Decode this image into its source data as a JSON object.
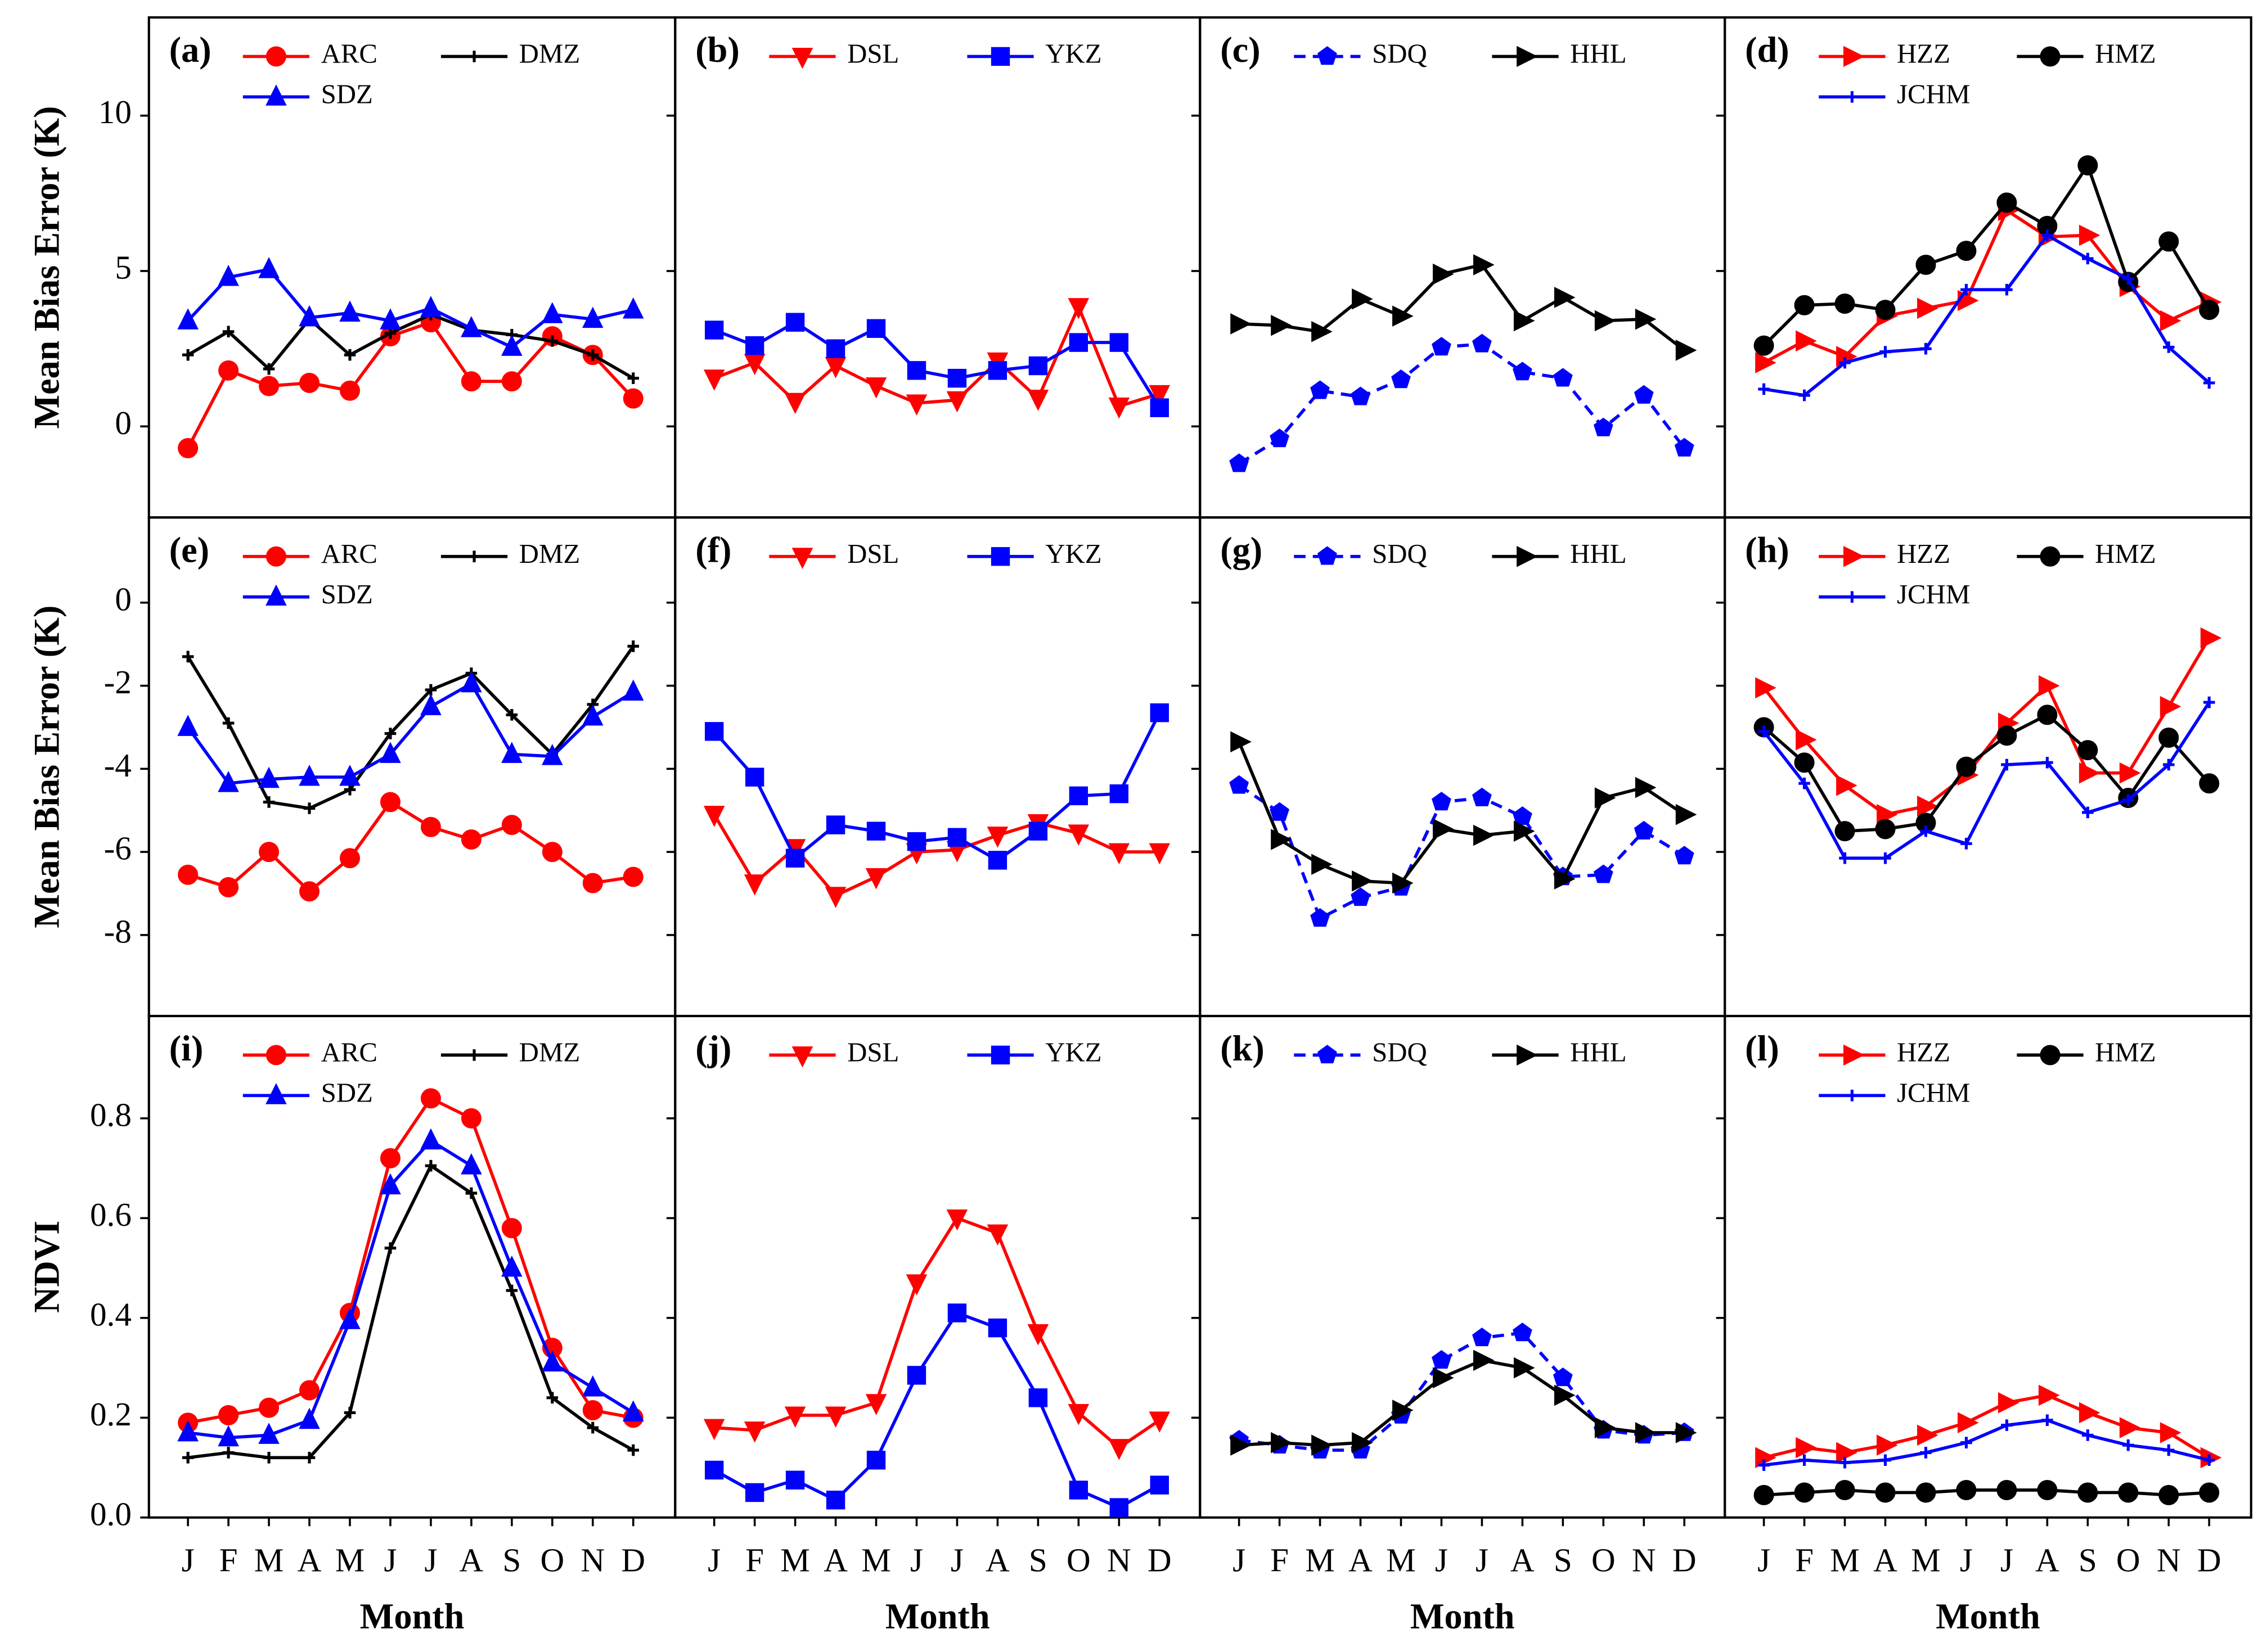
{
  "chart_data": [
    {
      "type": "line",
      "title": "(a)",
      "ylabel": "Mean Bias Error (K)",
      "ylim": [
        -2.93,
        13.16
      ],
      "yticks": [
        0,
        5,
        10
      ],
      "series": [
        {
          "name": "ARC",
          "color": "#ff0000",
          "marker": "circle",
          "values": [
            -0.7,
            1.8,
            1.3,
            1.4,
            1.15,
            2.9,
            3.35,
            1.45,
            1.45,
            2.9,
            2.3,
            0.9
          ]
        },
        {
          "name": "DMZ",
          "color": "#000000",
          "marker": "plus",
          "values": [
            2.3,
            3.05,
            1.85,
            3.45,
            2.3,
            3.0,
            3.6,
            3.1,
            2.95,
            2.75,
            2.3,
            1.55
          ]
        },
        {
          "name": "SDZ",
          "color": "#0000ff",
          "marker": "triangle-up",
          "values": [
            3.4,
            4.8,
            5.05,
            3.5,
            3.65,
            3.4,
            3.8,
            3.15,
            2.55,
            3.6,
            3.45,
            3.75
          ]
        }
      ]
    },
    {
      "type": "line",
      "title": "(b)",
      "ylim": [
        -2.93,
        13.16
      ],
      "yticks": [
        0,
        5,
        10
      ],
      "series": [
        {
          "name": "DSL",
          "color": "#ff0000",
          "marker": "triangle-down",
          "values": [
            1.55,
            2.05,
            0.8,
            1.95,
            1.3,
            0.75,
            0.85,
            2.1,
            0.9,
            3.85,
            0.65,
            1.05
          ]
        },
        {
          "name": "YKZ",
          "color": "#0000ff",
          "marker": "square",
          "values": [
            3.1,
            2.6,
            3.35,
            2.5,
            3.15,
            1.8,
            1.55,
            1.8,
            1.95,
            2.7,
            2.7,
            0.6
          ]
        }
      ]
    },
    {
      "type": "line",
      "title": "(c)",
      "ylim": [
        -2.93,
        13.16
      ],
      "yticks": [
        0,
        5,
        10
      ],
      "series": [
        {
          "name": "SDQ",
          "color": "#0000ff",
          "marker": "pentagon",
          "dashed": true,
          "values": [
            -1.2,
            -0.4,
            1.15,
            0.95,
            1.5,
            2.55,
            2.65,
            1.75,
            1.55,
            -0.05,
            1.0,
            -0.7
          ]
        },
        {
          "name": "HHL",
          "color": "#000000",
          "marker": "triangle-right",
          "values": [
            3.3,
            3.25,
            3.05,
            4.1,
            3.55,
            4.9,
            5.2,
            3.4,
            4.15,
            3.4,
            3.45,
            2.45
          ]
        }
      ]
    },
    {
      "type": "line",
      "title": "(d)",
      "ylim": [
        -2.93,
        13.16
      ],
      "yticks": [
        0,
        5,
        10
      ],
      "series": [
        {
          "name": "HZZ",
          "color": "#ff0000",
          "marker": "triangle-right",
          "values": [
            2.05,
            2.75,
            2.25,
            3.55,
            3.8,
            4.05,
            6.95,
            6.1,
            6.15,
            4.5,
            3.4,
            4.0
          ]
        },
        {
          "name": "HMZ",
          "color": "#000000",
          "marker": "circle",
          "values": [
            2.6,
            3.9,
            3.95,
            3.75,
            5.2,
            5.65,
            7.2,
            6.45,
            8.4,
            4.65,
            5.95,
            3.75
          ]
        },
        {
          "name": "JCHM",
          "color": "#0000ff",
          "marker": "plus",
          "values": [
            1.2,
            1.0,
            2.05,
            2.4,
            2.5,
            4.4,
            4.4,
            6.15,
            5.4,
            4.75,
            2.55,
            1.4
          ]
        }
      ]
    },
    {
      "type": "line",
      "title": "(e)",
      "ylabel": "Mean Bias Error (K)",
      "ylim": [
        -9.95,
        2.05
      ],
      "yticks": [
        -8,
        -6,
        -4,
        -2,
        0
      ],
      "series": [
        {
          "name": "ARC",
          "color": "#ff0000",
          "marker": "circle",
          "values": [
            -6.55,
            -6.85,
            -6.0,
            -6.95,
            -6.15,
            -4.8,
            -5.4,
            -5.7,
            -5.35,
            -6.0,
            -6.75,
            -6.6
          ]
        },
        {
          "name": "DMZ",
          "color": "#000000",
          "marker": "plus",
          "values": [
            -1.3,
            -2.9,
            -4.8,
            -4.95,
            -4.5,
            -3.15,
            -2.1,
            -1.7,
            -2.7,
            -3.65,
            -2.45,
            -1.05
          ]
        },
        {
          "name": "SDZ",
          "color": "#0000ff",
          "marker": "triangle-up",
          "values": [
            -3.0,
            -4.35,
            -4.25,
            -4.2,
            -4.2,
            -3.65,
            -2.5,
            -1.95,
            -3.65,
            -3.7,
            -2.75,
            -2.15
          ]
        }
      ]
    },
    {
      "type": "line",
      "title": "(f)",
      "ylim": [
        -9.95,
        2.05
      ],
      "yticks": [
        -8,
        -6,
        -4,
        -2,
        0
      ],
      "series": [
        {
          "name": "DSL",
          "color": "#ff0000",
          "marker": "triangle-down",
          "values": [
            -5.1,
            -6.75,
            -5.9,
            -7.05,
            -6.6,
            -6.0,
            -5.95,
            -5.6,
            -5.3,
            -5.55,
            -6.0,
            -6.0
          ]
        },
        {
          "name": "YKZ",
          "color": "#0000ff",
          "marker": "square",
          "values": [
            -3.1,
            -4.2,
            -6.15,
            -5.35,
            -5.5,
            -5.75,
            -5.65,
            -6.2,
            -5.5,
            -4.65,
            -4.6,
            -2.65
          ]
        }
      ]
    },
    {
      "type": "line",
      "title": "(g)",
      "ylim": [
        -9.95,
        2.05
      ],
      "yticks": [
        -8,
        -6,
        -4,
        -2,
        0
      ],
      "series": [
        {
          "name": "SDQ",
          "color": "#0000ff",
          "marker": "pentagon",
          "dashed": true,
          "values": [
            -4.4,
            -5.05,
            -7.6,
            -7.1,
            -6.85,
            -4.8,
            -4.7,
            -5.15,
            -6.6,
            -6.55,
            -5.5,
            -6.1
          ]
        },
        {
          "name": "HHL",
          "color": "#000000",
          "marker": "triangle-right",
          "values": [
            -3.35,
            -5.7,
            -6.3,
            -6.7,
            -6.75,
            -5.45,
            -5.6,
            -5.5,
            -6.65,
            -4.7,
            -4.45,
            -5.1
          ]
        }
      ]
    },
    {
      "type": "line",
      "title": "(h)",
      "ylim": [
        -9.95,
        2.05
      ],
      "yticks": [
        -8,
        -6,
        -4,
        -2,
        0
      ],
      "series": [
        {
          "name": "HZZ",
          "color": "#ff0000",
          "marker": "triangle-right",
          "values": [
            -2.05,
            -3.3,
            -4.4,
            -5.1,
            -4.9,
            -4.15,
            -2.9,
            -2.0,
            -4.1,
            -4.1,
            -2.5,
            -0.85
          ]
        },
        {
          "name": "HMZ",
          "color": "#000000",
          "marker": "circle",
          "values": [
            -3.0,
            -3.85,
            -5.5,
            -5.45,
            -5.3,
            -3.95,
            -3.2,
            -2.7,
            -3.55,
            -4.7,
            -3.25,
            -4.35
          ]
        },
        {
          "name": "JCHM",
          "color": "#0000ff",
          "marker": "plus",
          "values": [
            -3.1,
            -4.35,
            -6.15,
            -6.15,
            -5.5,
            -5.8,
            -3.9,
            -3.85,
            -5.05,
            -4.75,
            -3.9,
            -2.4
          ]
        }
      ]
    },
    {
      "type": "line",
      "title": "(i)",
      "ylabel": "NDVI",
      "xlabel": "Month",
      "categories": [
        "J",
        "F",
        "M",
        "A",
        "M",
        "J",
        "J",
        "A",
        "S",
        "O",
        "N",
        "D"
      ],
      "ylim": [
        0,
        1.005
      ],
      "yticks": [
        {
          "value": 0,
          "label": "0.0"
        },
        0.2,
        0.4,
        0.6,
        0.8
      ],
      "series": [
        {
          "name": "ARC",
          "color": "#ff0000",
          "marker": "circle",
          "values": [
            0.19,
            0.205,
            0.22,
            0.255,
            0.41,
            0.72,
            0.84,
            0.8,
            0.58,
            0.34,
            0.215,
            0.2
          ]
        },
        {
          "name": "DMZ",
          "color": "#000000",
          "marker": "plus",
          "values": [
            0.12,
            0.13,
            0.12,
            0.12,
            0.21,
            0.54,
            0.705,
            0.65,
            0.455,
            0.24,
            0.18,
            0.135
          ]
        },
        {
          "name": "SDZ",
          "color": "#0000ff",
          "marker": "triangle-up",
          "values": [
            0.17,
            0.16,
            0.165,
            0.195,
            0.395,
            0.665,
            0.755,
            0.705,
            0.5,
            0.31,
            0.26,
            0.21
          ]
        }
      ]
    },
    {
      "type": "line",
      "title": "(j)",
      "xlabel": "Month",
      "categories": [
        "J",
        "F",
        "M",
        "A",
        "M",
        "J",
        "J",
        "A",
        "S",
        "O",
        "N",
        "D"
      ],
      "ylim": [
        0,
        1.005
      ],
      "yticks": [
        0,
        0.2,
        0.4,
        0.6,
        0.8
      ],
      "series": [
        {
          "name": "DSL",
          "color": "#ff0000",
          "marker": "triangle-down",
          "values": [
            0.18,
            0.175,
            0.205,
            0.205,
            0.23,
            0.47,
            0.6,
            0.57,
            0.37,
            0.21,
            0.14,
            0.195
          ]
        },
        {
          "name": "YKZ",
          "color": "#0000ff",
          "marker": "square",
          "values": [
            0.095,
            0.05,
            0.075,
            0.035,
            0.115,
            0.285,
            0.41,
            0.38,
            0.24,
            0.055,
            0.02,
            0.065
          ]
        }
      ]
    },
    {
      "type": "line",
      "title": "(k)",
      "xlabel": "Month",
      "categories": [
        "J",
        "F",
        "M",
        "A",
        "M",
        "J",
        "J",
        "A",
        "S",
        "O",
        "N",
        "D"
      ],
      "ylim": [
        0,
        1.005
      ],
      "yticks": [
        0,
        0.2,
        0.4,
        0.6,
        0.8
      ],
      "series": [
        {
          "name": "SDQ",
          "color": "#0000ff",
          "marker": "pentagon",
          "dashed": true,
          "values": [
            0.155,
            0.145,
            0.135,
            0.135,
            0.205,
            0.315,
            0.36,
            0.37,
            0.28,
            0.175,
            0.165,
            0.17
          ]
        },
        {
          "name": "HHL",
          "color": "#000000",
          "marker": "triangle-right",
          "values": [
            0.145,
            0.15,
            0.145,
            0.15,
            0.215,
            0.28,
            0.315,
            0.3,
            0.245,
            0.18,
            0.17,
            0.17
          ]
        }
      ]
    },
    {
      "type": "line",
      "title": "(l)",
      "xlabel": "Month",
      "categories": [
        "J",
        "F",
        "M",
        "A",
        "M",
        "J",
        "J",
        "A",
        "S",
        "O",
        "N",
        "D"
      ],
      "ylim": [
        0,
        1.005
      ],
      "yticks": [
        0,
        0.2,
        0.4,
        0.6,
        0.8
      ],
      "series": [
        {
          "name": "HZZ",
          "color": "#ff0000",
          "marker": "triangle-right",
          "values": [
            0.12,
            0.14,
            0.13,
            0.145,
            0.165,
            0.19,
            0.23,
            0.245,
            0.21,
            0.18,
            0.17,
            0.12
          ]
        },
        {
          "name": "HMZ",
          "color": "#000000",
          "marker": "circle",
          "values": [
            0.045,
            0.05,
            0.055,
            0.05,
            0.05,
            0.055,
            0.055,
            0.055,
            0.05,
            0.05,
            0.045,
            0.05
          ]
        },
        {
          "name": "JCHM",
          "color": "#0000ff",
          "marker": "plus",
          "values": [
            0.105,
            0.115,
            0.11,
            0.115,
            0.13,
            0.15,
            0.185,
            0.195,
            0.165,
            0.145,
            0.135,
            0.115
          ]
        }
      ]
    }
  ]
}
